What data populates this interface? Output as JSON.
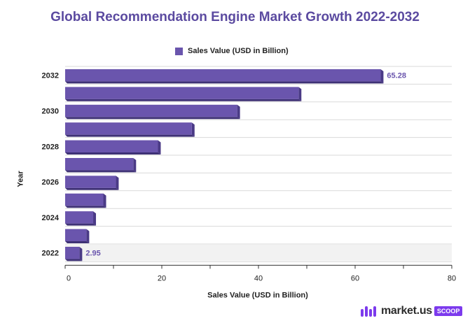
{
  "chart_data": {
    "type": "bar",
    "orientation": "horizontal",
    "title": "Global Recommendation Engine Market Growth 2022-2032",
    "xlabel": "Sales Value (USD in Billion)",
    "ylabel": "Year",
    "xlim": [
      0,
      80
    ],
    "xticks": [
      0,
      20,
      40,
      60,
      80
    ],
    "categories": [
      "2022",
      "2023",
      "2024",
      "2025",
      "2026",
      "2027",
      "2028",
      "2029",
      "2030",
      "2031",
      "2032"
    ],
    "category_labels": [
      "2022",
      "",
      "2024",
      "",
      "2026",
      "",
      "2028",
      "",
      "2030",
      "",
      "2032"
    ],
    "series": [
      {
        "name": "Sales Value (USD in Billion)",
        "values": [
          2.95,
          4.4,
          5.8,
          7.9,
          10.5,
          14.1,
          19.2,
          26.2,
          35.6,
          48.3,
          65.28
        ],
        "color": "#6a55ad"
      }
    ],
    "data_labels": {
      "2022": "2.95",
      "2032": "65.28"
    },
    "legend_position": "top-center",
    "grid": true
  },
  "branding": {
    "logo_text": "market.us",
    "logo_badge": "SCOOP"
  }
}
